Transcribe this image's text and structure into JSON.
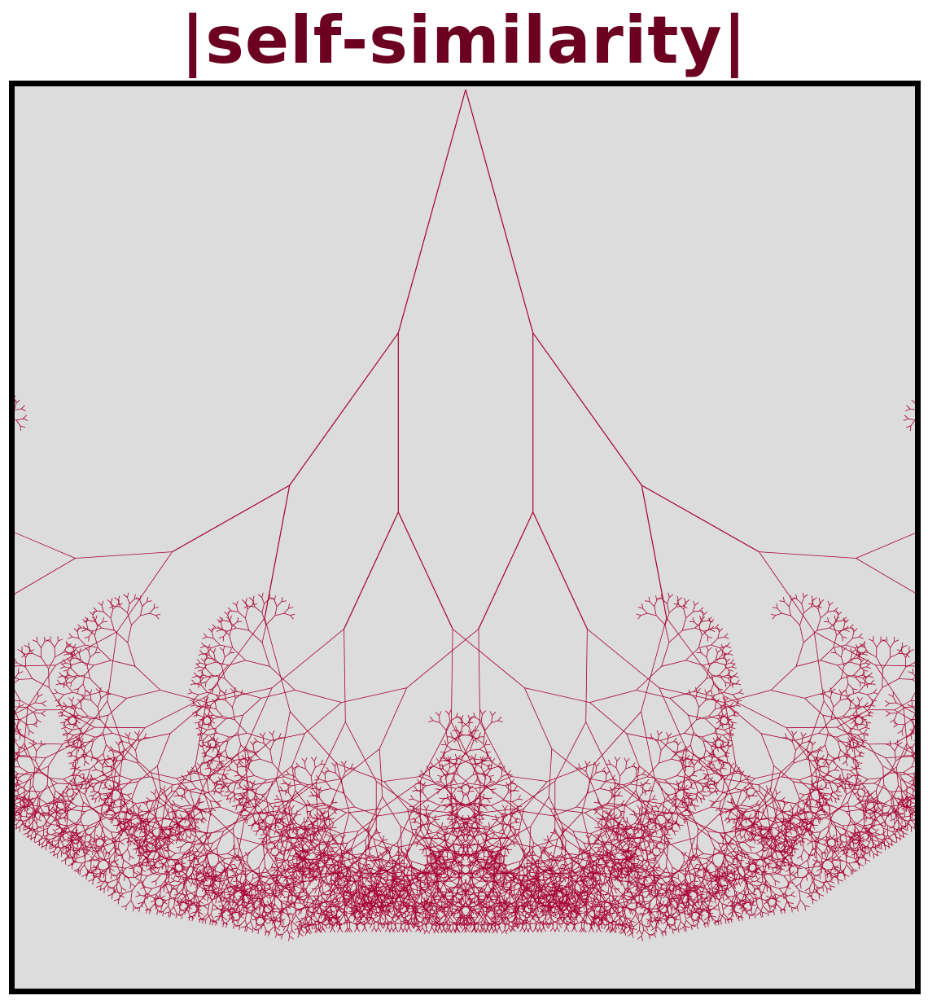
{
  "title": "|self-similarity|",
  "colors": {
    "title": "#6b0020",
    "background": "#dcdcdc",
    "branches": "#a80030",
    "frame": "#000000"
  },
  "figure": {
    "subject": "fractal-tree",
    "depth": 12
  }
}
